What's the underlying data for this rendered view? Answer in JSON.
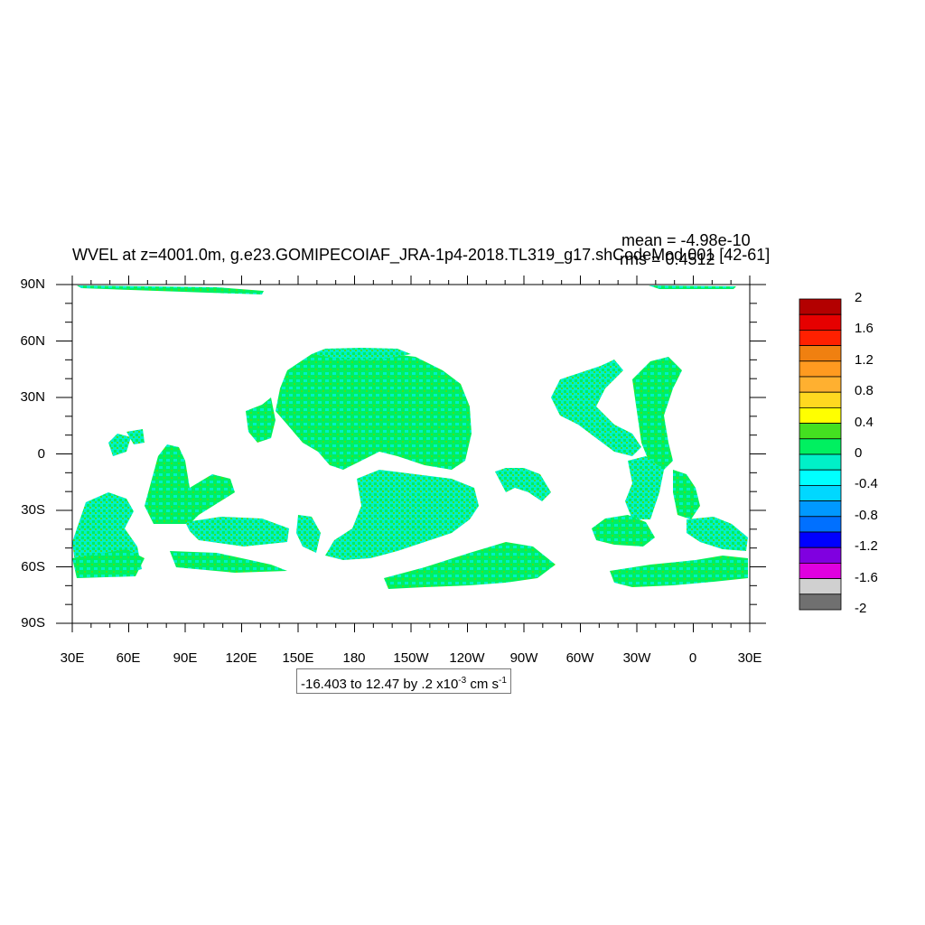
{
  "title": "WVEL at z=4001.0m, g.e23.GOMIPECOIAF_JRA-1p4-2018.TL319_g17.shCodeMod.001 [42-61]",
  "stats": {
    "mean": "mean = -4.98e-10",
    "rms": "rms = 0.4512"
  },
  "lat_labels": [
    "90N",
    "60N",
    "30N",
    "0",
    "30S",
    "60S",
    "90S"
  ],
  "lon_labels": [
    "30E",
    "60E",
    "90E",
    "120E",
    "150E",
    "180",
    "150W",
    "120W",
    "90W",
    "60W",
    "30W",
    "0",
    "30E"
  ],
  "contour_info": {
    "text": "-16.403 to 12.47 by .2 x10",
    "exp": "-3",
    "units": " cm s",
    "units_exp": "-1"
  },
  "colorbar": {
    "labels": [
      "2",
      "1.6",
      "1.2",
      "0.8",
      "0.4",
      "0",
      "-0.4",
      "-0.8",
      "-1.2",
      "-1.6",
      "-2"
    ],
    "colors": [
      "#b30000",
      "#e60000",
      "#ff2000",
      "#f08010",
      "#ff9a20",
      "#ffb030",
      "#ffd820",
      "#ffff00",
      "#44e020",
      "#00f060",
      "#00f0c8",
      "#00ffff",
      "#00d8ff",
      "#0099ff",
      "#0070ff",
      "#0000ff",
      "#8000e0",
      "#e000e0",
      "#d0d0d0",
      "#707070"
    ]
  },
  "map_colors": {
    "ocean_teal": "#00f0c8",
    "ocean_green": "#00f060",
    "ocean_lightgreen": "#44e020",
    "land": "#ffffff"
  }
}
